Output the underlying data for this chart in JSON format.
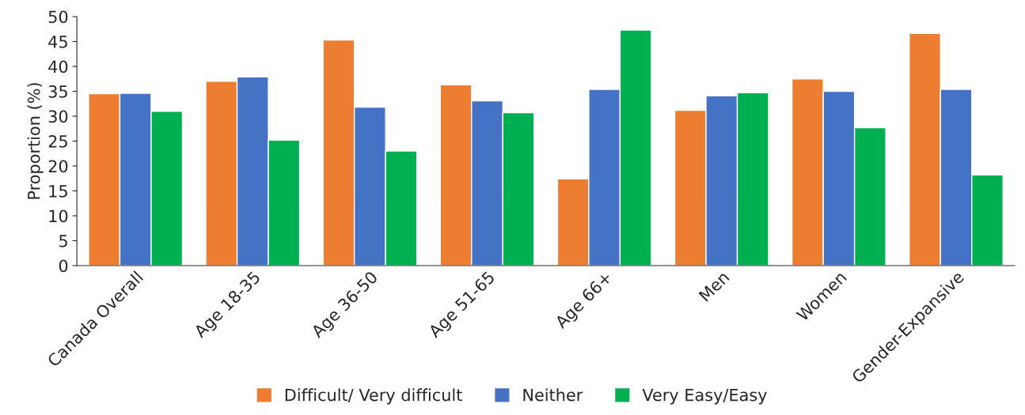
{
  "chart_data": {
    "type": "bar",
    "ylabel": "Proportion (%)",
    "categories": [
      "Canada Overall",
      "Age 18-35",
      "Age 36-50",
      "Age 51-65",
      "Age 66+",
      "Men",
      "Women",
      "Gender-Expansive"
    ],
    "series": [
      {
        "name": "Difficult/ Very difficult",
        "color": "#ed7d31",
        "values": [
          34.5,
          37.0,
          45.3,
          36.3,
          17.4,
          31.2,
          37.5,
          46.6
        ]
      },
      {
        "name": "Neither",
        "color": "#4472c4",
        "values": [
          34.6,
          37.9,
          31.8,
          33.1,
          35.4,
          34.1,
          35.0,
          35.4
        ]
      },
      {
        "name": "Very Easy/Easy",
        "color": "#00b050",
        "values": [
          31.0,
          25.2,
          23.0,
          30.7,
          47.3,
          34.7,
          27.7,
          18.2
        ]
      }
    ],
    "ylim": [
      0,
      50
    ],
    "yticks": [
      0,
      5,
      10,
      15,
      20,
      25,
      30,
      35,
      40,
      45,
      50
    ],
    "grid": false,
    "legend": "bottom"
  }
}
